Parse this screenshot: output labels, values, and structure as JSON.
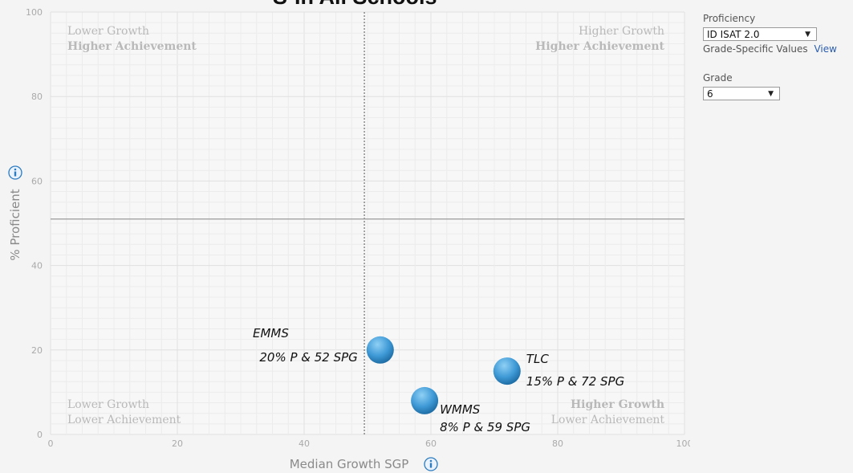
{
  "title": "S-In All Schools",
  "panel": {
    "proficiency_label": "Proficiency",
    "proficiency_value": "ID ISAT 2.0",
    "grade_specific_label": "Grade-Specific Values",
    "view_link": "View",
    "grade_label": "Grade",
    "grade_value": "6"
  },
  "icons": {
    "info": "info-icon",
    "dropdown": "dropdown-arrow-icon"
  },
  "colors": {
    "bubble": "#2b86c5",
    "bubble_highlight": "#8fd0f5",
    "grid": "#e6e6e6",
    "midline": "#9a9a9a"
  },
  "chart_data": {
    "type": "scatter",
    "xlabel": "Median Growth SGP",
    "ylabel": "% Proficient",
    "xlim": [
      0,
      100
    ],
    "ylim": [
      0,
      100
    ],
    "xticks": [
      0,
      20,
      40,
      60,
      80,
      100
    ],
    "yticks": [
      0,
      20,
      40,
      60,
      80,
      100
    ],
    "grid": true,
    "vertical_reference_x": 49.5,
    "horizontal_reference_y": 51,
    "quadrants": {
      "top_left": [
        "Lower Growth",
        "Higher Achievement"
      ],
      "top_right": [
        "Higher Growth",
        "Higher Achievement"
      ],
      "bottom_left": [
        "Lower Growth",
        "Lower Achievement"
      ],
      "bottom_right": [
        "Higher Growth",
        "Lower Achievement"
      ]
    },
    "points": [
      {
        "name": "EMMS",
        "label": "20% P & 52 SPG",
        "x": 52,
        "y": 20
      },
      {
        "name": "WMMS",
        "label": "8% P & 59 SPG",
        "x": 59,
        "y": 8
      },
      {
        "name": "TLC",
        "label": "15% P & 72 SPG",
        "x": 72,
        "y": 15
      }
    ]
  }
}
